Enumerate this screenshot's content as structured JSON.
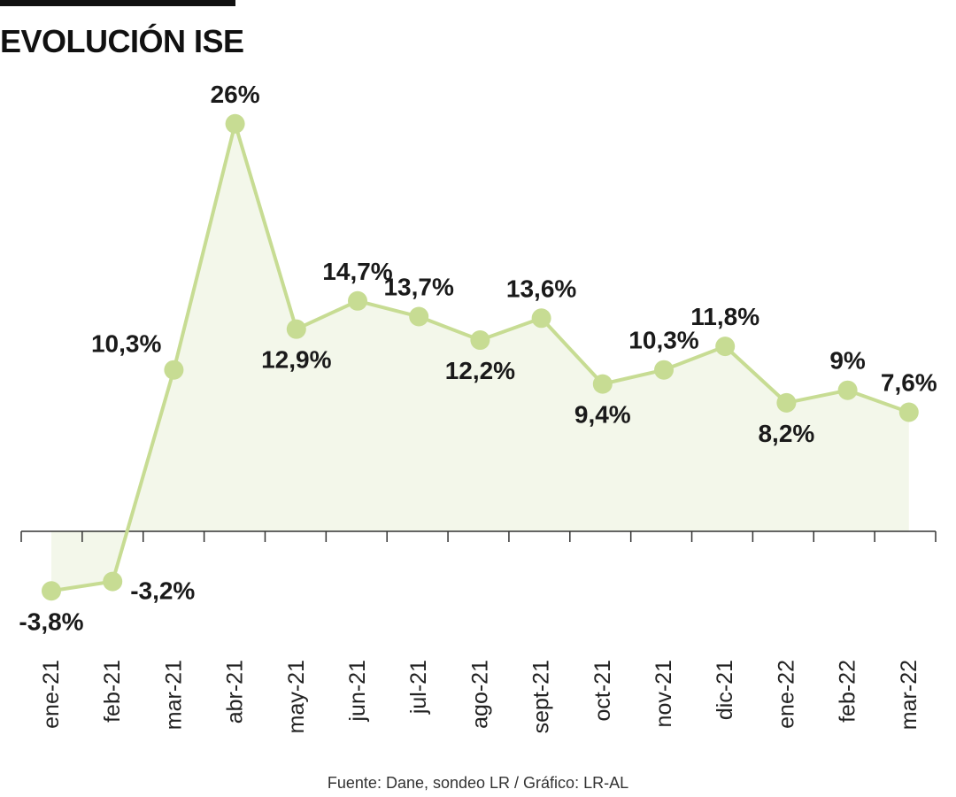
{
  "title": "EVOLUCIÓN ISE",
  "source": "Fuente: Dane, sondeo LR / Gráfico: LR-AL",
  "colors": {
    "line": "#c7dc93",
    "marker": "#c7dc93",
    "area": "#f3f7ea",
    "axis": "#333333",
    "text": "#1a1a1a"
  },
  "chart_data": {
    "type": "line",
    "title": "EVOLUCIÓN ISE",
    "categories": [
      "ene-21",
      "feb-21",
      "mar-21",
      "abr-21",
      "may-21",
      "jun-21",
      "jul-21",
      "ago-21",
      "sept-21",
      "oct-21",
      "nov-21",
      "dic-21",
      "ene-22",
      "feb-22",
      "mar-22"
    ],
    "values": [
      -3.8,
      -3.2,
      10.3,
      26,
      12.9,
      14.7,
      13.7,
      12.2,
      13.6,
      9.4,
      10.3,
      11.8,
      8.2,
      9,
      7.6
    ],
    "data_labels": [
      "-3,8%",
      "-3,2%",
      "10,3%",
      "26%",
      "12,9%",
      "14,7%",
      "13,7%",
      "12,2%",
      "13,6%",
      "9,4%",
      "10,3%",
      "11,8%",
      "8,2%",
      "9%",
      "7,6%"
    ],
    "label_position": [
      "below",
      "right",
      "left",
      "above",
      "below",
      "above",
      "above",
      "below",
      "above",
      "below",
      "above",
      "above",
      "below",
      "above",
      "above"
    ],
    "xlabel": "",
    "ylabel": "",
    "grid": false,
    "legend": "none",
    "area_fill": true
  }
}
